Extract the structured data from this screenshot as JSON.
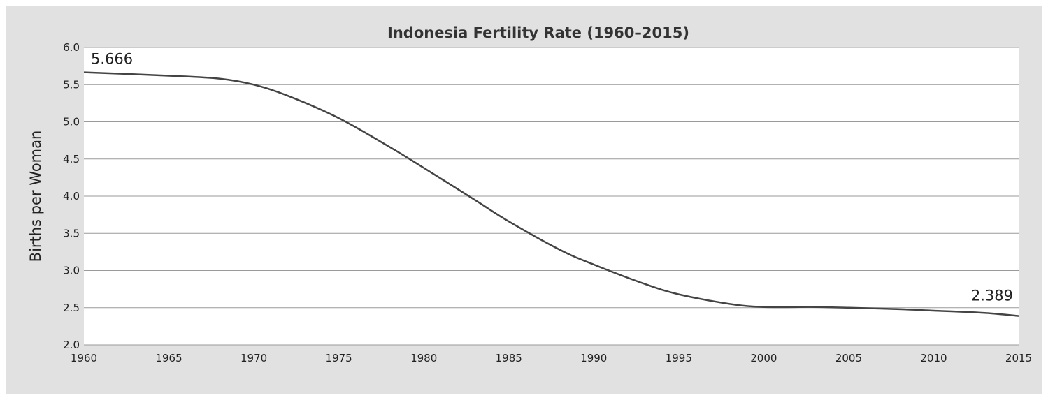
{
  "chart_data": {
    "type": "line",
    "title": "Indonesia Fertility Rate (1960–2015)",
    "xlabel": "",
    "ylabel": "Births per Woman",
    "xlim": [
      1960,
      2015
    ],
    "ylim": [
      2.0,
      6.0
    ],
    "x_ticks": [
      "1960",
      "1965",
      "1970",
      "1975",
      "1980",
      "1985",
      "1990",
      "1995",
      "2000",
      "2005",
      "2010",
      "2015"
    ],
    "y_ticks": [
      "6.0",
      "5.5",
      "5.0",
      "4.5",
      "4.0",
      "3.5",
      "3.0",
      "2.5",
      "2.0"
    ],
    "grid": "horizontal",
    "legend": "none",
    "series": [
      {
        "color": "#444444",
        "x": [
          1960,
          1965,
          1968,
          1970,
          1972,
          1975,
          1978,
          1980,
          1983,
          1985,
          1988,
          1990,
          1993,
          1995,
          1998,
          2000,
          2003,
          2005,
          2008,
          2010,
          2013,
          2015
        ],
        "y": [
          5.666,
          5.62,
          5.58,
          5.5,
          5.35,
          5.05,
          4.66,
          4.38,
          3.95,
          3.66,
          3.28,
          3.08,
          2.82,
          2.68,
          2.55,
          2.51,
          2.51,
          2.5,
          2.48,
          2.46,
          2.43,
          2.389
        ]
      }
    ],
    "annotations": [
      {
        "text": "5.666",
        "x": 1960,
        "y": 5.666
      },
      {
        "text": "2.389",
        "x": 2015,
        "y": 2.389
      }
    ]
  }
}
